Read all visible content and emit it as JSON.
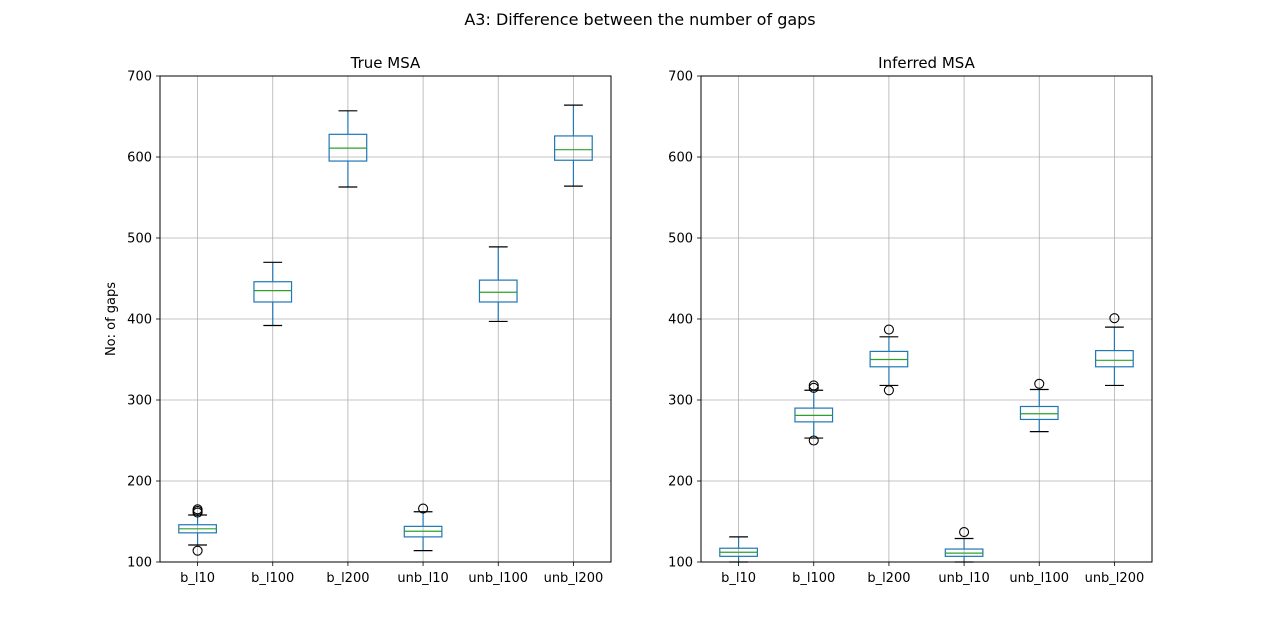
{
  "figure": {
    "suptitle": "A3: Difference between the number of gaps",
    "ylabel": "No: of gaps"
  },
  "colors": {
    "box": "#1f77b4",
    "median": "#2ca02c",
    "grid": "#b0b0b0",
    "whisker_cap": "#000000"
  },
  "chart_data": [
    {
      "type": "boxplot",
      "title": "True MSA",
      "ylabel": "No: of gaps",
      "ylim": [
        100,
        700
      ],
      "yticks": [
        100,
        200,
        300,
        400,
        500,
        600,
        700
      ],
      "grid": true,
      "categories": [
        "b_l10",
        "b_l100",
        "b_l200",
        "unb_l10",
        "unb_l100",
        "unb_l200"
      ],
      "boxes": [
        {
          "label": "b_l10",
          "whislo": 121,
          "q1": 136,
          "median": 141,
          "q3": 146,
          "whishi": 158,
          "fliers": [
            114,
            161,
            163,
            165
          ]
        },
        {
          "label": "b_l100",
          "whislo": 392,
          "q1": 421,
          "median": 435,
          "q3": 446,
          "whishi": 470,
          "fliers": []
        },
        {
          "label": "b_l200",
          "whislo": 563,
          "q1": 595,
          "median": 611,
          "q3": 628,
          "whishi": 657,
          "fliers": []
        },
        {
          "label": "unb_l10",
          "whislo": 114,
          "q1": 131,
          "median": 138,
          "q3": 144,
          "whishi": 162,
          "fliers": [
            166
          ]
        },
        {
          "label": "unb_l100",
          "whislo": 397,
          "q1": 421,
          "median": 433,
          "q3": 448,
          "whishi": 489,
          "fliers": []
        },
        {
          "label": "unb_l200",
          "whislo": 564,
          "q1": 596,
          "median": 609,
          "q3": 626,
          "whishi": 664,
          "fliers": []
        }
      ]
    },
    {
      "type": "boxplot",
      "title": "Inferred MSA",
      "ylabel": "",
      "ylim": [
        100,
        700
      ],
      "yticks": [
        100,
        200,
        300,
        400,
        500,
        600,
        700
      ],
      "grid": true,
      "categories": [
        "b_l10",
        "b_l100",
        "b_l200",
        "unb_l10",
        "unb_l100",
        "unb_l200"
      ],
      "boxes": [
        {
          "label": "b_l10",
          "whislo": 100,
          "q1": 107,
          "median": 112,
          "q3": 117,
          "whishi": 131,
          "fliers": []
        },
        {
          "label": "b_l100",
          "whislo": 253,
          "q1": 273,
          "median": 281,
          "q3": 290,
          "whishi": 312,
          "fliers": [
            250,
            315,
            318
          ]
        },
        {
          "label": "b_l200",
          "whislo": 318,
          "q1": 341,
          "median": 350,
          "q3": 360,
          "whishi": 378,
          "fliers": [
            312,
            387
          ]
        },
        {
          "label": "unb_l10",
          "whislo": 100,
          "q1": 107,
          "median": 111,
          "q3": 116,
          "whishi": 129,
          "fliers": [
            137
          ]
        },
        {
          "label": "unb_l100",
          "whislo": 261,
          "q1": 276,
          "median": 283,
          "q3": 292,
          "whishi": 313,
          "fliers": [
            320
          ]
        },
        {
          "label": "unb_l200",
          "whislo": 318,
          "q1": 341,
          "median": 349,
          "q3": 361,
          "whishi": 390,
          "fliers": [
            401
          ]
        }
      ]
    }
  ]
}
